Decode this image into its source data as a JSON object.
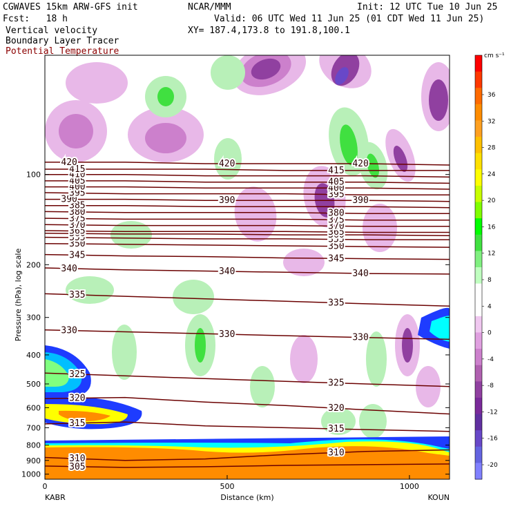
{
  "header": {
    "model": "CGWAVES 15km ARW-GFS init",
    "fcst": "Fcst:   18 h",
    "org": "NCAR/MMM",
    "init": "Init: 12 UTC Tue 10 Jun 25",
    "valid": "Valid: 06 UTC Wed 11 Jun 25 (01 CDT Wed 11 Jun 25)",
    "xy": "XY= 187.4,173.8 to 191.8,100.1",
    "field1": "Vertical velocity",
    "field2": "Boundary Layer Tracer",
    "field3": "Potential Temperature",
    "field3_color": "#8b0000"
  },
  "chart_data": {
    "type": "heatmap",
    "title": "",
    "xlabel": "Distance (km)",
    "ylabel": "Pressure (hPa), log scale",
    "xlim": [
      0,
      1110
    ],
    "x_ticks": [
      "0",
      "500",
      "1000"
    ],
    "y_scale": "log",
    "y_ticks": [
      "100",
      "200",
      "300",
      "400",
      "500",
      "600",
      "700",
      "800",
      "900",
      "1000"
    ],
    "endpoints": {
      "left": "KABR",
      "right": "KOUN"
    },
    "colorbar": {
      "units": "cm s⁻¹",
      "labels": [
        "36",
        "32",
        "28",
        "24",
        "20",
        "16",
        "12",
        "8",
        "4",
        "0",
        "-4",
        "-8",
        "-12",
        "-16",
        "-20"
      ],
      "colors": [
        "#ff0000",
        "#ff3800",
        "#ff6a00",
        "#ff8c00",
        "#ffa020",
        "#ffc000",
        "#ffe000",
        "#ffff00",
        "#c8ff00",
        "#80ff00",
        "#00ff00",
        "#40e040",
        "#80f080",
        "#c0ffc0",
        "#ffffff",
        "#ffffff",
        "#f0c8f0",
        "#e0a0e0",
        "#cc80cc",
        "#b060b0",
        "#9040a0",
        "#7a2a9a",
        "#6030a0",
        "#6848c8",
        "#6464e0",
        "#8080ff"
      ]
    },
    "theta_contours": [
      {
        "value": 305,
        "labels": [
          "305"
        ]
      },
      {
        "value": 310,
        "labels": [
          "310",
          "310"
        ]
      },
      {
        "value": 315,
        "labels": [
          "315",
          "315"
        ]
      },
      {
        "value": 320,
        "labels": [
          "320",
          "320"
        ]
      },
      {
        "value": 325,
        "labels": [
          "325",
          "325"
        ]
      },
      {
        "value": 330,
        "labels": [
          "330",
          "330",
          "330"
        ]
      },
      {
        "value": 335,
        "labels": [
          "335",
          "335"
        ]
      },
      {
        "value": 340,
        "labels": [
          "340",
          "340",
          "340"
        ]
      },
      {
        "value": 345,
        "labels": [
          "345",
          "345"
        ]
      },
      {
        "value": 350,
        "labels": [
          "350",
          "350"
        ]
      },
      {
        "value": 355,
        "labels": [
          "355",
          "355"
        ]
      },
      {
        "value": 360,
        "labels": [
          "360",
          "360"
        ]
      },
      {
        "value": 365,
        "labels": [
          "365",
          "365"
        ]
      },
      {
        "value": 370,
        "labels": [
          "370",
          "370"
        ]
      },
      {
        "value": 375,
        "labels": [
          "375",
          "375"
        ]
      },
      {
        "value": 380,
        "labels": [
          "380",
          "380"
        ]
      },
      {
        "value": 385,
        "labels": [
          "385"
        ]
      },
      {
        "value": 390,
        "labels": [
          "390",
          "390",
          "390"
        ]
      },
      {
        "value": 395,
        "labels": [
          "395",
          "395"
        ]
      },
      {
        "value": 400,
        "labels": [
          "400",
          "400"
        ]
      },
      {
        "value": 405,
        "labels": [
          "405",
          "405"
        ]
      },
      {
        "value": 410,
        "labels": [
          "410"
        ]
      },
      {
        "value": 415,
        "labels": [
          "415",
          "415"
        ]
      },
      {
        "value": 420,
        "labels": [
          "420",
          "420",
          "420"
        ]
      }
    ]
  }
}
